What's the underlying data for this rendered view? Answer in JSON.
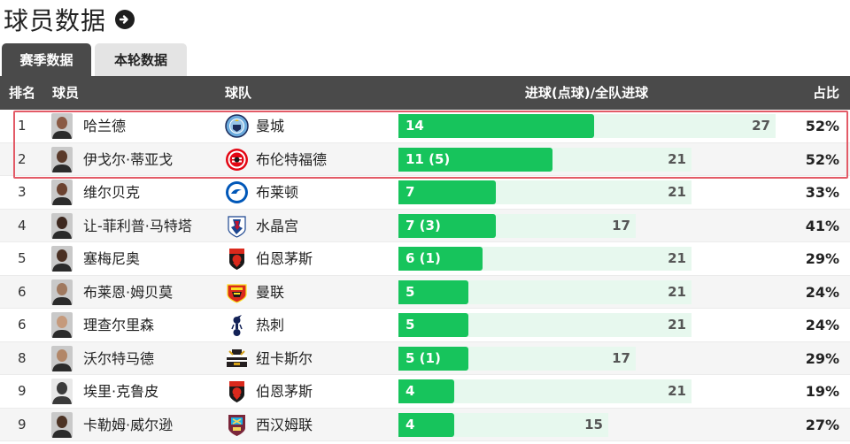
{
  "header": {
    "title": "球员数据"
  },
  "tabs": [
    {
      "label": "赛季数据",
      "active": true
    },
    {
      "label": "本轮数据",
      "active": false
    }
  ],
  "columns": {
    "rank": "排名",
    "player": "球员",
    "team": "球队",
    "goals": "进球(点球)/全队进球",
    "pct": "占比"
  },
  "colors": {
    "bar": "#17c45c",
    "bar_bg": "#e7f8ee",
    "header_bg": "#4a4a4a",
    "highlight": "#e35b67"
  },
  "rows": [
    {
      "rank": "1",
      "player": "哈兰德",
      "team": "曼城",
      "crest": "man-city-crest",
      "goals": 14,
      "goals_label": "14",
      "team_goals": 27,
      "team_goals_label": "27",
      "pct": "52%"
    },
    {
      "rank": "2",
      "player": "伊戈尔·蒂亚戈",
      "team": "布伦特福德",
      "crest": "brentford-crest",
      "goals": 11,
      "goals_label": "11 (5)",
      "team_goals": 21,
      "team_goals_label": "21",
      "pct": "52%"
    },
    {
      "rank": "3",
      "player": "维尔贝克",
      "team": "布莱顿",
      "crest": "brighton-crest",
      "goals": 7,
      "goals_label": "7",
      "team_goals": 21,
      "team_goals_label": "21",
      "pct": "33%"
    },
    {
      "rank": "4",
      "player": "让-菲利普·马特塔",
      "team": "水晶宫",
      "crest": "crystal-palace-crest",
      "goals": 7,
      "goals_label": "7 (3)",
      "team_goals": 17,
      "team_goals_label": "17",
      "pct": "41%"
    },
    {
      "rank": "5",
      "player": "塞梅尼奥",
      "team": "伯恩茅斯",
      "crest": "bournemouth-crest",
      "goals": 6,
      "goals_label": "6 (1)",
      "team_goals": 21,
      "team_goals_label": "21",
      "pct": "29%"
    },
    {
      "rank": "6",
      "player": "布莱恩·姆贝莫",
      "team": "曼联",
      "crest": "man-utd-crest",
      "goals": 5,
      "goals_label": "5",
      "team_goals": 21,
      "team_goals_label": "21",
      "pct": "24%"
    },
    {
      "rank": "6",
      "player": "理查尔里森",
      "team": "热刺",
      "crest": "tottenham-crest",
      "goals": 5,
      "goals_label": "5",
      "team_goals": 21,
      "team_goals_label": "21",
      "pct": "24%"
    },
    {
      "rank": "8",
      "player": "沃尔特马德",
      "team": "纽卡斯尔",
      "crest": "newcastle-crest",
      "goals": 5,
      "goals_label": "5 (1)",
      "team_goals": 17,
      "team_goals_label": "17",
      "pct": "29%"
    },
    {
      "rank": "9",
      "player": "埃里·克鲁皮",
      "team": "伯恩茅斯",
      "crest": "bournemouth-crest",
      "goals": 4,
      "goals_label": "4",
      "team_goals": 21,
      "team_goals_label": "21",
      "pct": "19%"
    },
    {
      "rank": "9",
      "player": "卡勒姆·威尔逊",
      "team": "西汉姆联",
      "crest": "west-ham-crest",
      "goals": 4,
      "goals_label": "4",
      "team_goals": 15,
      "team_goals_label": "15",
      "pct": "27%"
    }
  ]
}
